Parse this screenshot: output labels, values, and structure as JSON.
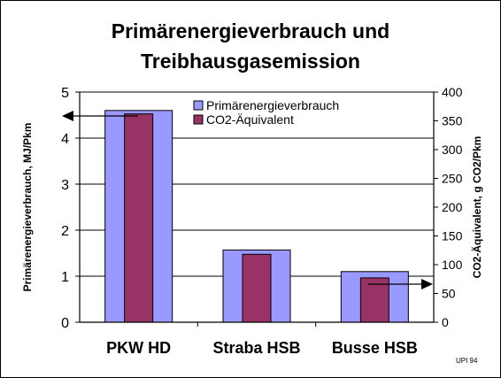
{
  "chart_data": {
    "type": "bar",
    "title_lines": [
      "Primärenergieverbrauch und",
      "Treibhausgasemission"
    ],
    "categories": [
      "PKW HD",
      "Straba HSB",
      "Busse HSB"
    ],
    "series": [
      {
        "name": "Primärenergieverbrauch",
        "axis": "left",
        "color": "#9999ff",
        "values": [
          4.6,
          1.57,
          1.1
        ]
      },
      {
        "name": "CO2-Äquivalent",
        "axis": "right",
        "color": "#993366",
        "values": [
          362,
          118,
          77
        ]
      }
    ],
    "ylabel_left": "Primärenergieverbrauch, MJ/Pkm",
    "ylabel_right": "CO2-Äquivalent, g CO2/Pkm",
    "ylim_left": [
      0,
      5
    ],
    "ylim_right": [
      0,
      400
    ],
    "yticks_left": [
      "0",
      "1",
      "2",
      "3",
      "4",
      "5"
    ],
    "yticks_right": [
      "0",
      "50",
      "100",
      "150",
      "200",
      "250",
      "300",
      "350",
      "400"
    ],
    "grid": true,
    "legend_position": "top-center",
    "annotations": [
      {
        "type": "arrow",
        "points_to": "left axis",
        "category": "PKW HD"
      },
      {
        "type": "arrow",
        "points_to": "right axis",
        "category": "Busse HSB"
      }
    ],
    "source_note": "UPI  94"
  }
}
